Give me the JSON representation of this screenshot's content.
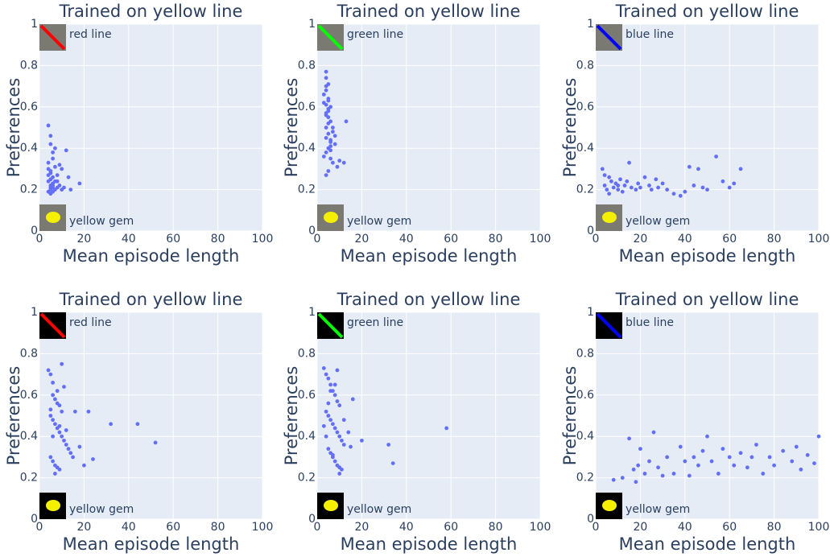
{
  "chart_data": [
    {
      "type": "scatter",
      "title": "Trained on yellow line",
      "x_label": "Mean episode length",
      "y_label": "Preferences",
      "top_annotation": "red line",
      "bottom_annotation": "yellow gem",
      "icon_color": "#ff0000",
      "series": [
        {
          "color": "#636efa",
          "x": [
            4,
            5,
            5,
            6,
            4,
            7,
            5,
            8,
            6,
            5,
            4,
            6,
            9,
            5,
            7,
            10,
            4,
            6,
            5,
            8,
            12,
            14,
            11,
            5,
            6,
            4,
            7,
            9,
            5,
            6,
            13,
            18,
            5,
            4,
            6,
            8,
            10,
            7,
            5,
            6
          ],
          "values": [
            0.51,
            0.46,
            0.42,
            0.38,
            0.33,
            0.31,
            0.29,
            0.27,
            0.26,
            0.25,
            0.24,
            0.23,
            0.22,
            0.21,
            0.2,
            0.2,
            0.19,
            0.19,
            0.22,
            0.24,
            0.39,
            0.2,
            0.21,
            0.28,
            0.35,
            0.3,
            0.4,
            0.32,
            0.18,
            0.21,
            0.26,
            0.23,
            0.25,
            0.27,
            0.22,
            0.21,
            0.3,
            0.24,
            0.2,
            0.23
          ]
        }
      ],
      "xlim": [
        0,
        100
      ],
      "ylim": [
        0,
        1
      ],
      "xticks": [
        0,
        20,
        40,
        60,
        80,
        100
      ],
      "yticks": [
        0,
        0.2,
        0.4,
        0.6,
        0.8,
        1
      ],
      "grid": true
    },
    {
      "type": "scatter",
      "title": "Trained on yellow line",
      "x_label": "Mean episode length",
      "y_label": "Preferences",
      "top_annotation": "green line",
      "bottom_annotation": "yellow gem",
      "icon_color": "#00ff00",
      "series": [
        {
          "color": "#636efa",
          "x": [
            4,
            4,
            5,
            4,
            3,
            5,
            4,
            6,
            5,
            4,
            5,
            6,
            4,
            7,
            5,
            4,
            6,
            8,
            5,
            4,
            3,
            6,
            7,
            9,
            10,
            12,
            13,
            5,
            4,
            6,
            5,
            7,
            4,
            5,
            3,
            6,
            8,
            4,
            5,
            6
          ],
          "values": [
            0.77,
            0.74,
            0.71,
            0.68,
            0.66,
            0.63,
            0.61,
            0.6,
            0.58,
            0.56,
            0.55,
            0.53,
            0.5,
            0.48,
            0.47,
            0.45,
            0.43,
            0.42,
            0.4,
            0.38,
            0.36,
            0.35,
            0.33,
            0.31,
            0.34,
            0.33,
            0.53,
            0.29,
            0.27,
            0.39,
            0.64,
            0.5,
            0.7,
            0.52,
            0.62,
            0.44,
            0.46,
            0.57,
            0.59,
            0.41
          ]
        }
      ],
      "xlim": [
        0,
        100
      ],
      "ylim": [
        0,
        1
      ],
      "xticks": [
        0,
        20,
        40,
        60,
        80,
        100
      ],
      "yticks": [
        0,
        0.2,
        0.4,
        0.6,
        0.8,
        1
      ],
      "grid": true
    },
    {
      "type": "scatter",
      "title": "Trained on yellow line",
      "x_label": "Mean episode length",
      "y_label": "Preferences",
      "top_annotation": "blue line",
      "bottom_annotation": "yellow gem",
      "icon_color": "#0000ff",
      "series": [
        {
          "color": "#636efa",
          "x": [
            3,
            4,
            5,
            6,
            7,
            8,
            9,
            10,
            11,
            12,
            13,
            14,
            15,
            16,
            18,
            19,
            20,
            22,
            24,
            25,
            27,
            28,
            30,
            32,
            35,
            38,
            40,
            42,
            44,
            46,
            48,
            50,
            54,
            57,
            60,
            62,
            65,
            4,
            6,
            10
          ],
          "values": [
            0.3,
            0.22,
            0.2,
            0.26,
            0.24,
            0.21,
            0.23,
            0.2,
            0.25,
            0.19,
            0.22,
            0.24,
            0.33,
            0.21,
            0.2,
            0.23,
            0.21,
            0.26,
            0.22,
            0.2,
            0.25,
            0.21,
            0.23,
            0.2,
            0.18,
            0.17,
            0.19,
            0.31,
            0.22,
            0.3,
            0.21,
            0.2,
            0.36,
            0.24,
            0.21,
            0.23,
            0.3,
            0.27,
            0.18,
            0.22
          ]
        }
      ],
      "xlim": [
        0,
        100
      ],
      "ylim": [
        0,
        1
      ],
      "xticks": [
        0,
        20,
        40,
        60,
        80,
        100
      ],
      "yticks": [
        0,
        0.2,
        0.4,
        0.6,
        0.8,
        1
      ],
      "grid": true
    },
    {
      "type": "scatter",
      "title": "Trained on yellow line",
      "x_label": "Mean episode length",
      "y_label": "Preferences",
      "top_annotation": "red line",
      "bottom_annotation": "yellow gem",
      "icon_color": "#ff0000",
      "series": [
        {
          "color": "#636efa",
          "x": [
            4,
            5,
            6,
            6,
            7,
            8,
            9,
            10,
            5,
            6,
            7,
            8,
            9,
            10,
            11,
            12,
            13,
            14,
            5,
            6,
            7,
            8,
            9,
            10,
            11,
            16,
            18,
            20,
            22,
            24,
            32,
            44,
            52,
            7,
            8,
            9,
            12,
            5,
            6,
            15
          ],
          "values": [
            0.72,
            0.7,
            0.66,
            0.6,
            0.58,
            0.56,
            0.55,
            0.52,
            0.5,
            0.48,
            0.46,
            0.44,
            0.42,
            0.4,
            0.38,
            0.36,
            0.34,
            0.32,
            0.3,
            0.28,
            0.26,
            0.25,
            0.24,
            0.75,
            0.64,
            0.52,
            0.35,
            0.26,
            0.52,
            0.29,
            0.46,
            0.46,
            0.37,
            0.22,
            0.62,
            0.45,
            0.43,
            0.53,
            0.4,
            0.3
          ]
        }
      ],
      "xlim": [
        0,
        100
      ],
      "ylim": [
        0,
        1
      ],
      "xticks": [
        0,
        20,
        40,
        60,
        80,
        100
      ],
      "yticks": [
        0,
        0.2,
        0.4,
        0.6,
        0.8,
        1
      ],
      "grid": true
    },
    {
      "type": "scatter",
      "title": "Trained on yellow line",
      "x_label": "Mean episode length",
      "y_label": "Preferences",
      "top_annotation": "green line",
      "bottom_annotation": "yellow gem",
      "icon_color": "#00ff00",
      "series": [
        {
          "color": "#636efa",
          "x": [
            3,
            4,
            5,
            6,
            7,
            8,
            9,
            10,
            4,
            5,
            6,
            7,
            8,
            9,
            10,
            11,
            12,
            5,
            6,
            7,
            8,
            9,
            10,
            11,
            14,
            16,
            20,
            32,
            34,
            58,
            4,
            5,
            6,
            7,
            8,
            9,
            10,
            12,
            15,
            3
          ],
          "values": [
            0.73,
            0.7,
            0.68,
            0.65,
            0.62,
            0.6,
            0.57,
            0.55,
            0.52,
            0.5,
            0.48,
            0.46,
            0.44,
            0.42,
            0.4,
            0.38,
            0.36,
            0.34,
            0.32,
            0.3,
            0.28,
            0.26,
            0.25,
            0.24,
            0.42,
            0.58,
            0.38,
            0.36,
            0.27,
            0.44,
            0.4,
            0.56,
            0.62,
            0.31,
            0.65,
            0.72,
            0.22,
            0.48,
            0.35,
            0.45
          ]
        }
      ],
      "xlim": [
        0,
        100
      ],
      "ylim": [
        0,
        1
      ],
      "xticks": [
        0,
        20,
        40,
        60,
        80,
        100
      ],
      "yticks": [
        0,
        0.2,
        0.4,
        0.6,
        0.8,
        1
      ],
      "grid": true
    },
    {
      "type": "scatter",
      "title": "Trained on yellow line",
      "x_label": "Mean episode length",
      "y_label": "Preferences",
      "top_annotation": "blue line",
      "bottom_annotation": "yellow gem",
      "icon_color": "#0000ff",
      "series": [
        {
          "color": "#636efa",
          "x": [
            8,
            12,
            15,
            17,
            18,
            19,
            20,
            22,
            24,
            26,
            28,
            30,
            32,
            35,
            38,
            40,
            42,
            44,
            46,
            48,
            50,
            52,
            55,
            57,
            60,
            62,
            65,
            68,
            70,
            72,
            75,
            78,
            80,
            84,
            88,
            90,
            92,
            95,
            98,
            100
          ],
          "values": [
            0.19,
            0.2,
            0.39,
            0.24,
            0.18,
            0.26,
            0.34,
            0.22,
            0.28,
            0.42,
            0.25,
            0.21,
            0.3,
            0.22,
            0.35,
            0.28,
            0.21,
            0.3,
            0.26,
            0.33,
            0.4,
            0.28,
            0.22,
            0.34,
            0.3,
            0.26,
            0.32,
            0.25,
            0.3,
            0.36,
            0.22,
            0.3,
            0.26,
            0.33,
            0.28,
            0.35,
            0.24,
            0.31,
            0.27,
            0.4
          ]
        }
      ],
      "xlim": [
        0,
        100
      ],
      "ylim": [
        0,
        1
      ],
      "xticks": [
        0,
        20,
        40,
        60,
        80,
        100
      ],
      "yticks": [
        0,
        0.2,
        0.4,
        0.6,
        0.8,
        1
      ],
      "grid": true
    }
  ]
}
